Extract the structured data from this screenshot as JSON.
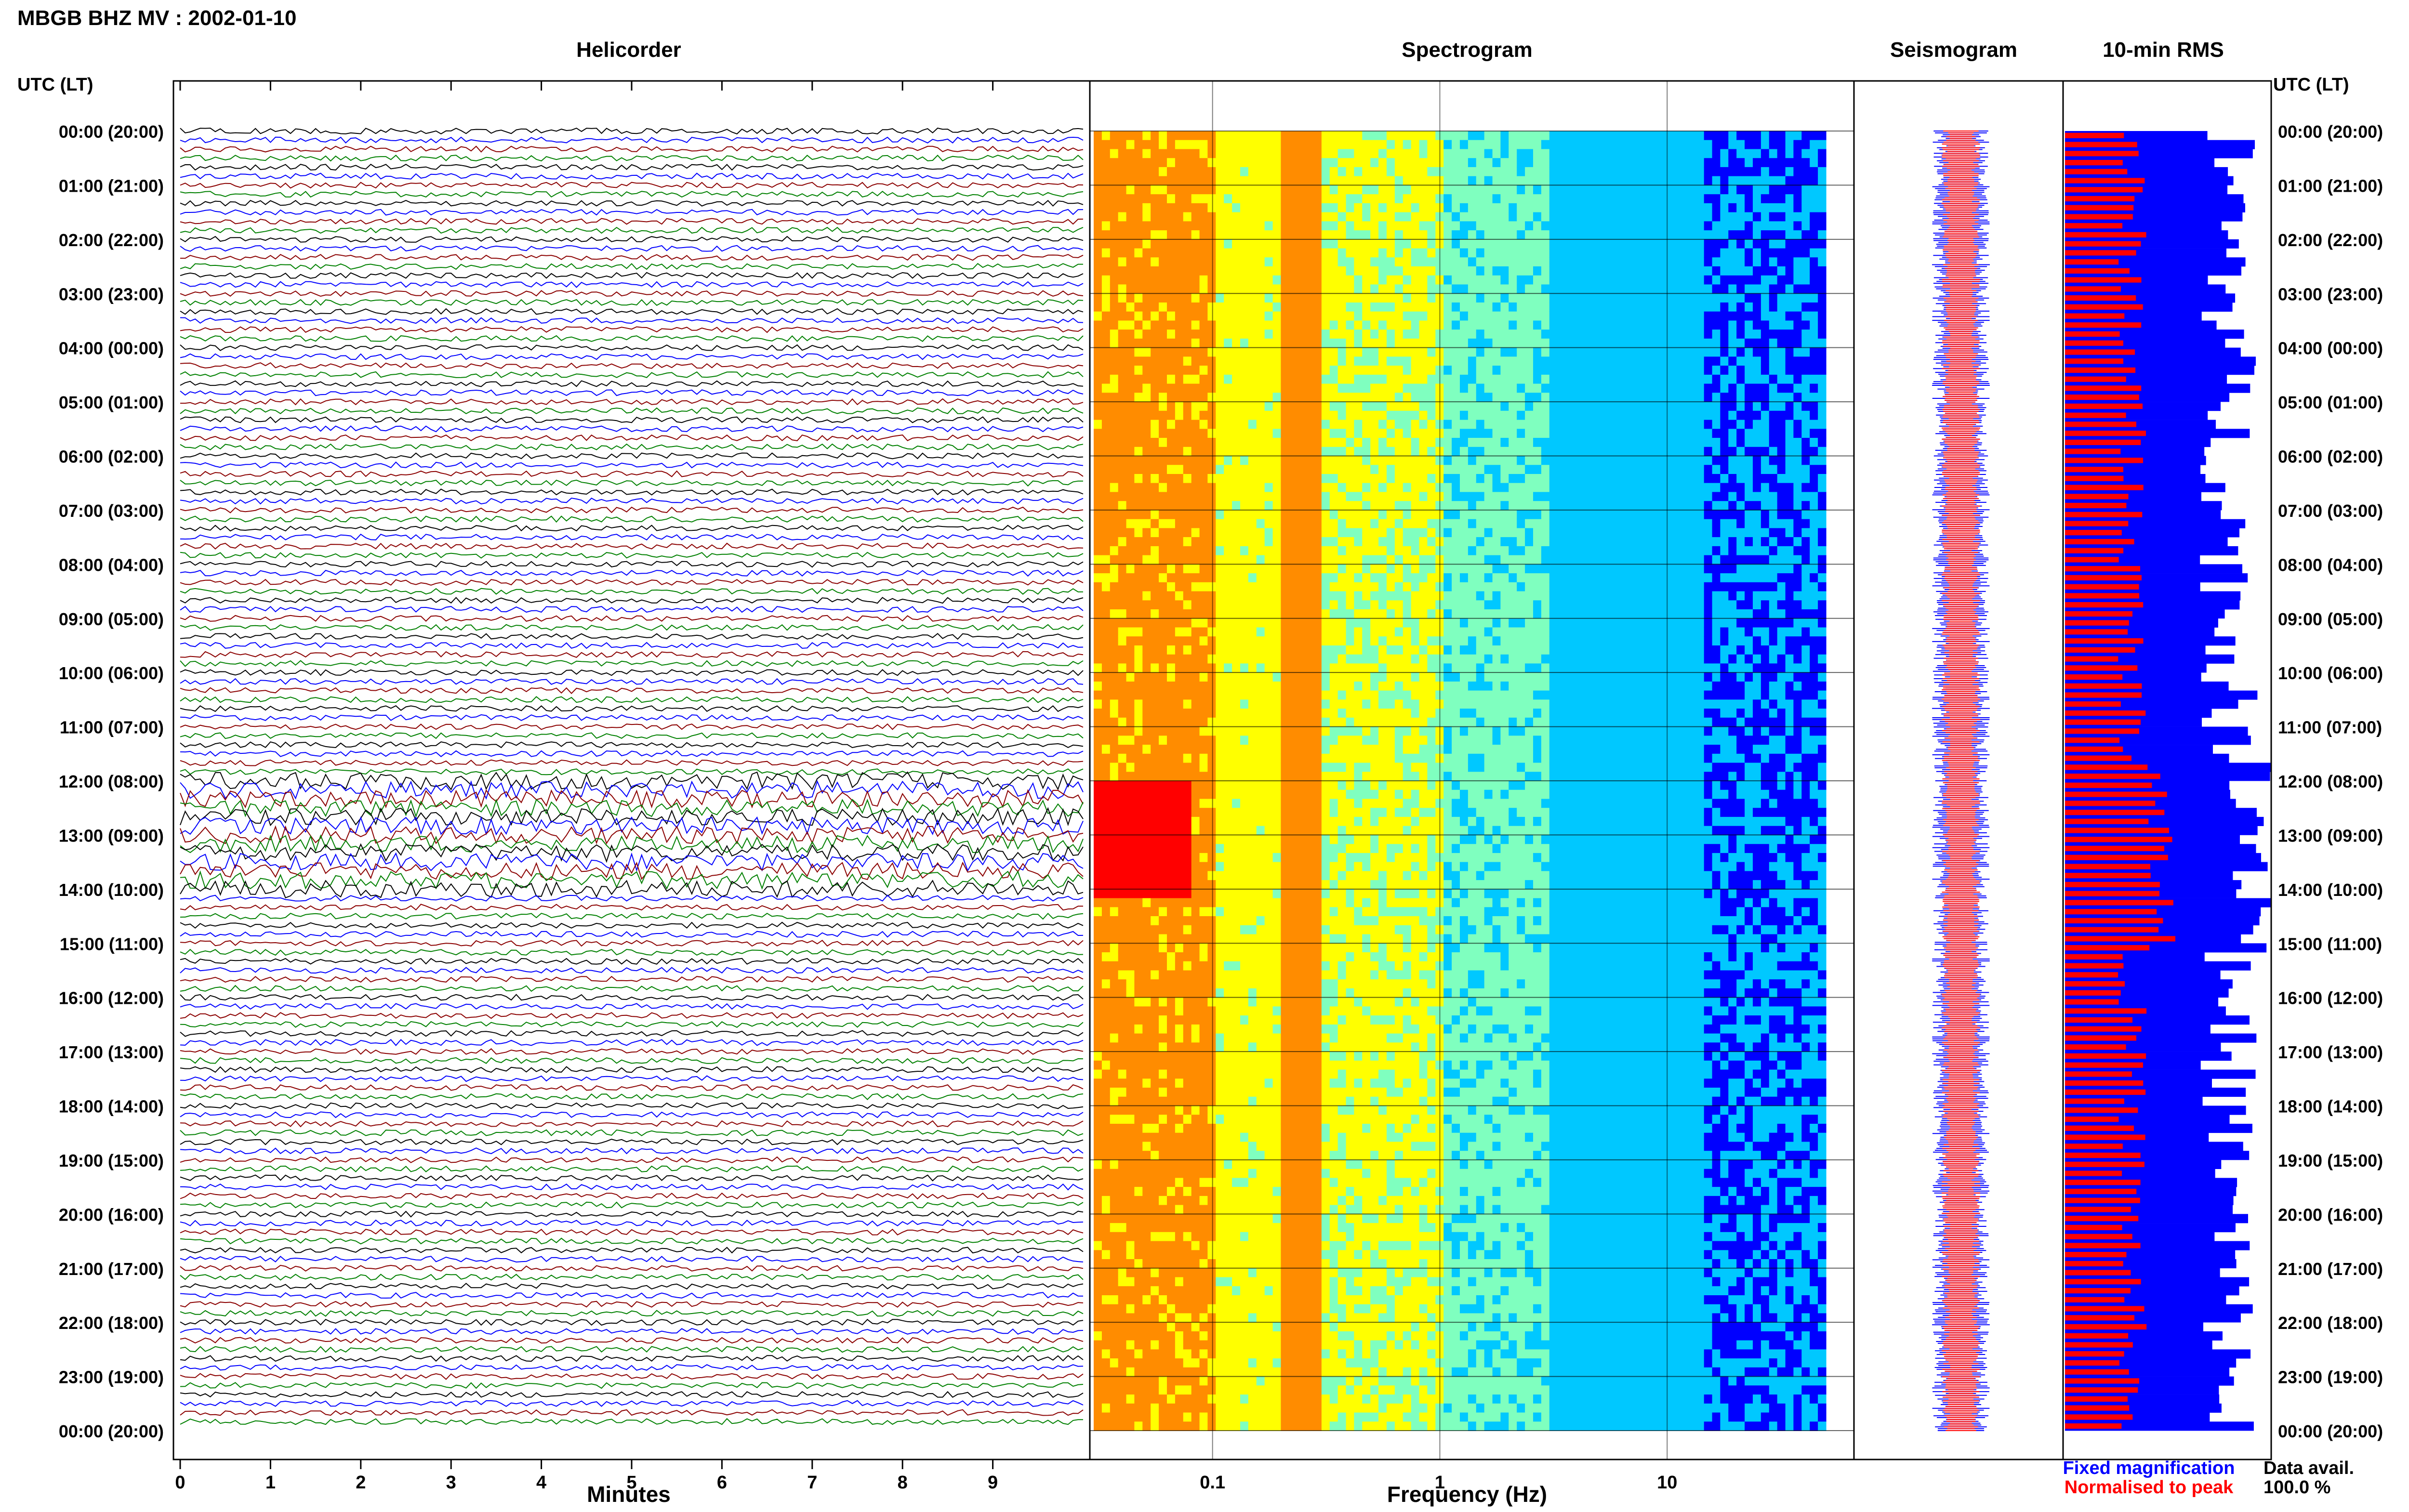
{
  "header": {
    "title": "MBGB BHZ MV : 2002-01-10",
    "utc_label": "UTC (LT)",
    "utc_label_right": "UTC (LT)"
  },
  "panels": {
    "helicorder": "Helicorder",
    "spectrogram": "Spectrogram",
    "seismogram": "Seismogram",
    "rms": "10-min RMS"
  },
  "legend": {
    "fixed": "Fixed magnification",
    "normalised": "Normalised to peak",
    "data_avail_label": "Data avail.",
    "data_avail_value": "100.0 %",
    "colors": {
      "fixed": "#0000ff",
      "normalised": "#ff0000"
    }
  },
  "chart_data": [
    {
      "type": "line",
      "panel": "helicorder",
      "xlabel": "Minutes",
      "x_ticks": [
        0,
        1,
        2,
        3,
        4,
        5,
        6,
        7,
        8,
        9
      ],
      "xlim": [
        0,
        10
      ],
      "row_labels": [
        "00:00 (20:00)",
        "01:00 (21:00)",
        "02:00 (22:00)",
        "03:00 (23:00)",
        "04:00 (00:00)",
        "05:00 (01:00)",
        "06:00 (02:00)",
        "07:00 (03:00)",
        "08:00 (04:00)",
        "09:00 (05:00)",
        "10:00 (06:00)",
        "11:00 (07:00)",
        "12:00 (08:00)",
        "13:00 (09:00)",
        "14:00 (10:00)",
        "15:00 (11:00)",
        "16:00 (12:00)",
        "17:00 (13:00)",
        "18:00 (14:00)",
        "19:00 (15:00)",
        "20:00 (16:00)",
        "21:00 (17:00)",
        "22:00 (18:00)",
        "23:00 (19:00)",
        "00:00 (20:00)"
      ],
      "trace_colors": [
        "#000000",
        "#0000ff",
        "#8b0000",
        "#008000"
      ]
    },
    {
      "type": "heatmap",
      "panel": "spectrogram",
      "xlabel": "Frequency (Hz)",
      "x_scale": "log",
      "x_ticks": [
        0.1,
        1,
        10
      ],
      "x_tick_labels": [
        "0.1",
        "1",
        "10"
      ],
      "xlim": [
        0.03,
        50
      ]
    },
    {
      "type": "line",
      "panel": "seismogram",
      "series": [
        {
          "color": "#0000ff"
        },
        {
          "color": "#ff0000"
        }
      ]
    },
    {
      "type": "bar",
      "panel": "rms",
      "orientation": "horizontal",
      "bins": 144,
      "series": [
        {
          "color": "#0000ff"
        },
        {
          "color": "#ff0000"
        }
      ]
    }
  ]
}
